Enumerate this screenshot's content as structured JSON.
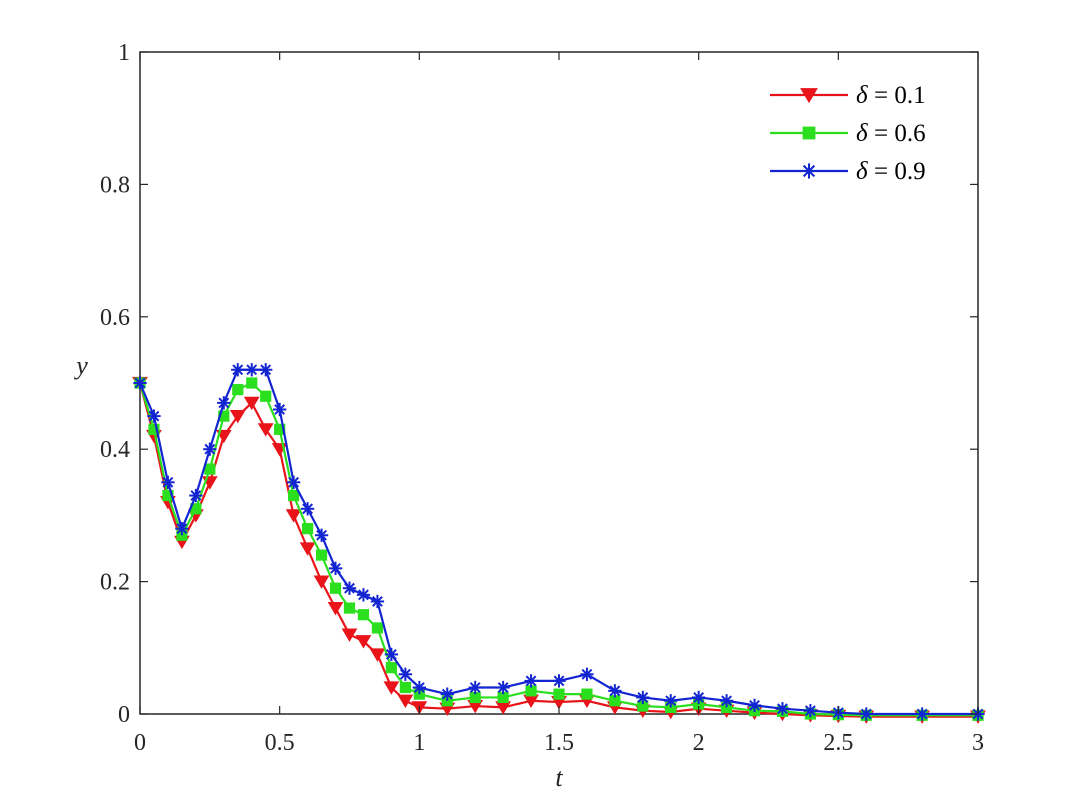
{
  "chart_data": {
    "type": "line",
    "title": "",
    "xlabel": "t",
    "ylabel": "y",
    "xlim": [
      0,
      3
    ],
    "ylim": [
      0,
      1
    ],
    "xticks": [
      0,
      0.5,
      1,
      1.5,
      2,
      2.5,
      3
    ],
    "xtick_labels": [
      "0",
      "0.5",
      "1",
      "1.5",
      "2",
      "2.5",
      "3"
    ],
    "yticks": [
      0,
      0.2,
      0.4,
      0.6,
      0.8,
      1
    ],
    "ytick_labels": [
      "0",
      "0.2",
      "0.4",
      "0.6",
      "0.8",
      "1"
    ],
    "grid": false,
    "legend_position": "top-right",
    "x": [
      0,
      0.05,
      0.1,
      0.15,
      0.2,
      0.25,
      0.3,
      0.35,
      0.4,
      0.45,
      0.5,
      0.55,
      0.6,
      0.65,
      0.7,
      0.75,
      0.8,
      0.85,
      0.9,
      0.95,
      1.0,
      1.1,
      1.2,
      1.3,
      1.4,
      1.5,
      1.6,
      1.7,
      1.8,
      1.9,
      2.0,
      2.1,
      2.2,
      2.3,
      2.4,
      2.5,
      2.6,
      2.8,
      3.0
    ],
    "series": [
      {
        "name": "δ = 0.1",
        "legend_label": "= 0.1",
        "legend_symbol": "δ",
        "color": "#e8141a",
        "marker": "triangle-down",
        "values": [
          0.5,
          0.42,
          0.32,
          0.26,
          0.3,
          0.35,
          0.42,
          0.45,
          0.47,
          0.43,
          0.4,
          0.3,
          0.25,
          0.2,
          0.16,
          0.12,
          0.11,
          0.09,
          0.04,
          0.02,
          0.01,
          0.008,
          0.012,
          0.01,
          0.02,
          0.018,
          0.02,
          0.01,
          0.005,
          0.003,
          0.008,
          0.005,
          0.002,
          0.0,
          -0.002,
          -0.003,
          -0.004,
          -0.004,
          -0.004
        ]
      },
      {
        "name": "δ = 0.6",
        "legend_label": "= 0.6",
        "legend_symbol": "δ",
        "color": "#2bdf1e",
        "marker": "square",
        "values": [
          0.5,
          0.43,
          0.33,
          0.27,
          0.31,
          0.37,
          0.45,
          0.49,
          0.5,
          0.48,
          0.43,
          0.33,
          0.28,
          0.24,
          0.19,
          0.16,
          0.15,
          0.13,
          0.07,
          0.04,
          0.03,
          0.02,
          0.025,
          0.025,
          0.035,
          0.03,
          0.03,
          0.02,
          0.012,
          0.01,
          0.015,
          0.01,
          0.005,
          0.004,
          0.0,
          -0.001,
          -0.002,
          -0.002,
          -0.002
        ]
      },
      {
        "name": "δ = 0.9",
        "legend_label": "= 0.9",
        "legend_symbol": "δ",
        "color": "#1225d1",
        "marker": "asterisk",
        "values": [
          0.5,
          0.45,
          0.35,
          0.28,
          0.33,
          0.4,
          0.47,
          0.52,
          0.52,
          0.52,
          0.46,
          0.35,
          0.31,
          0.27,
          0.22,
          0.19,
          0.18,
          0.17,
          0.09,
          0.06,
          0.04,
          0.03,
          0.04,
          0.04,
          0.05,
          0.05,
          0.06,
          0.035,
          0.025,
          0.02,
          0.025,
          0.02,
          0.013,
          0.008,
          0.005,
          0.002,
          0.0,
          0.0,
          0.0
        ]
      }
    ]
  }
}
